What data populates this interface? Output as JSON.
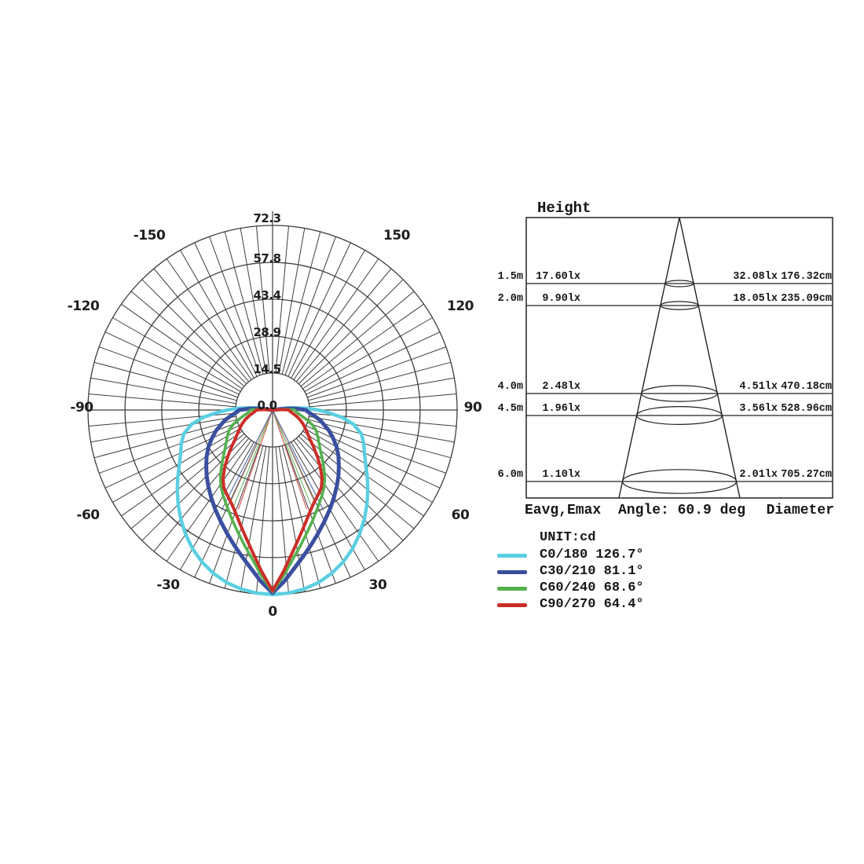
{
  "page": {
    "background": "#ffffff"
  },
  "chart_data": [
    {
      "type": "line",
      "subtype": "polar-candela-distribution",
      "title": "",
      "unit": "cd",
      "radial_axis": {
        "max": 72.3,
        "ticks": [
          0.0,
          14.5,
          28.9,
          43.4,
          57.8,
          72.3
        ],
        "tick_labels": [
          "0.0",
          "14.5",
          "28.9",
          "43.4",
          "57.8",
          "72.3"
        ]
      },
      "angle_ticks_deg": [
        -150,
        -120,
        -90,
        -60,
        -30,
        0,
        30,
        60,
        90,
        120,
        150
      ],
      "angle_tick_labels": [
        "-150",
        "-120",
        "-90",
        "-60",
        "-30",
        "0",
        "30",
        "60",
        "90",
        "120",
        "150"
      ],
      "grid": {
        "spoke_step_deg": 5,
        "inner_hole_value": 14.5,
        "color": "#3e3e3e"
      },
      "series": [
        {
          "name": "C0/180",
          "beam_angle": "126.7°",
          "color": "#5bcfe2",
          "width": 4.4,
          "points": [
            [
              0,
              72.3
            ],
            [
              5,
              72.0
            ],
            [
              10,
              71.2
            ],
            [
              15,
              69.9
            ],
            [
              20,
              68.0
            ],
            [
              25,
              65.6
            ],
            [
              30,
              62.7
            ],
            [
              35,
              59.4
            ],
            [
              40,
              55.9
            ],
            [
              45,
              52.3
            ],
            [
              50,
              48.7
            ],
            [
              55,
              45.3
            ],
            [
              60,
              42.1
            ],
            [
              65,
              39.7
            ],
            [
              70,
              38.0
            ],
            [
              75,
              36.0
            ],
            [
              80,
              32.2
            ],
            [
              84,
              27.3
            ],
            [
              87,
              22.3
            ],
            [
              90,
              17.8
            ],
            [
              93,
              13.3
            ],
            [
              97,
              7.3
            ],
            [
              100,
              3.2
            ],
            [
              103,
              0
            ]
          ]
        },
        {
          "name": "C30/210",
          "beam_angle": "81.1°",
          "color": "#3a4f9f",
          "width": 5,
          "points": [
            [
              0,
              71.7
            ],
            [
              4,
              67.2
            ],
            [
              8,
              62.4
            ],
            [
              12,
              58.4
            ],
            [
              16,
              54.9
            ],
            [
              20,
              51.7
            ],
            [
              25,
              48.1
            ],
            [
              30,
              44.9
            ],
            [
              35,
              41.9
            ],
            [
              40,
              39.1
            ],
            [
              45,
              36.5
            ],
            [
              50,
              33.9
            ],
            [
              55,
              31.5
            ],
            [
              60,
              29.0
            ],
            [
              65,
              26.2
            ],
            [
              70,
              23.5
            ],
            [
              74,
              21.0
            ],
            [
              78,
              19.0
            ],
            [
              82,
              16.5
            ],
            [
              85,
              14.8
            ],
            [
              88,
              13.5
            ],
            [
              90,
              13.1
            ],
            [
              93,
              9.3
            ],
            [
              96,
              5.2
            ],
            [
              100,
              0
            ]
          ]
        },
        {
          "name": "C60/240",
          "beam_angle": "68.6°",
          "color": "#55b14e",
          "width": 3.6,
          "points": [
            [
              0,
              71.2
            ],
            [
              4,
              64.8
            ],
            [
              8,
              58.6
            ],
            [
              12,
              53.8
            ],
            [
              16,
              49.6
            ],
            [
              20,
              46.0
            ],
            [
              25,
              42.0
            ],
            [
              30,
              38.7
            ],
            [
              34,
              36.2
            ],
            [
              38,
              33.2
            ],
            [
              42,
              30.0
            ],
            [
              46,
              27.0
            ],
            [
              50,
              24.4
            ],
            [
              55,
              22.2
            ],
            [
              60,
              20.4
            ],
            [
              65,
              18.8
            ],
            [
              70,
              16.4
            ],
            [
              75,
              13.4
            ],
            [
              80,
              11.0
            ],
            [
              85,
              9.4
            ],
            [
              88,
              8.9
            ],
            [
              90,
              8.7
            ],
            [
              93,
              5.3
            ],
            [
              97,
              0
            ]
          ]
        },
        {
          "name": "C90/270",
          "beam_angle": "64.4°",
          "color": "#cb2e28",
          "width": 4,
          "points": [
            [
              0,
              70.8
            ],
            [
              4,
              63.2
            ],
            [
              8,
              56.2
            ],
            [
              12,
              50.8
            ],
            [
              16,
              46.3
            ],
            [
              20,
              42.6
            ],
            [
              24,
              39.8
            ],
            [
              28,
              37.8
            ],
            [
              32,
              36.0
            ],
            [
              36,
              33.0
            ],
            [
              40,
              29.1
            ],
            [
              44,
              25.2
            ],
            [
              48,
              21.6
            ],
            [
              52,
              18.6
            ],
            [
              56,
              16.6
            ],
            [
              60,
              15.0
            ],
            [
              65,
              13.3
            ],
            [
              70,
              11.6
            ],
            [
              75,
              9.8
            ],
            [
              80,
              8.2
            ],
            [
              85,
              7.0
            ],
            [
              88,
              6.6
            ],
            [
              90,
              6.4
            ],
            [
              93,
              3.6
            ],
            [
              96,
              0
            ]
          ]
        }
      ],
      "center_rays": [
        {
          "color": "#cb2e28",
          "angle_deg": 19.0,
          "candela": 41
        },
        {
          "color": "#55b14e",
          "angle_deg": 22.0,
          "candela": 41
        },
        {
          "color": "#b98b66",
          "angle_deg": 24.5,
          "candela": 40
        },
        {
          "color": "#3a4f9f",
          "angle_deg": 27.0,
          "candela": 44
        }
      ]
    },
    {
      "type": "table",
      "subtype": "cone-illuminance-diagram",
      "title": "Height",
      "beam_angle_deg": 60.9,
      "columns": [
        "Height",
        "Eavg",
        "Emax",
        "Diameter"
      ],
      "rows": [
        {
          "height_m": 1.5,
          "height_label": "1.5m",
          "eavg": "17.60lx",
          "emax": "32.08lx",
          "diameter": "176.32cm"
        },
        {
          "height_m": 2.0,
          "height_label": "2.0m",
          "eavg": "9.90lx",
          "emax": "18.05lx",
          "diameter": "235.09cm"
        },
        {
          "height_m": 4.0,
          "height_label": "4.0m",
          "eavg": "2.48lx",
          "emax": "4.51lx",
          "diameter": "470.18cm"
        },
        {
          "height_m": 4.5,
          "height_label": "4.5m",
          "eavg": "1.96lx",
          "emax": "3.56lx",
          "diameter": "528.96cm"
        },
        {
          "height_m": 6.0,
          "height_label": "6.0m",
          "eavg": "1.10lx",
          "emax": "2.01lx",
          "diameter": "705.27cm"
        }
      ],
      "footer": {
        "left": "Eavg,Emax",
        "center": "Angle: 60.9 deg",
        "right": "Diameter"
      }
    }
  ],
  "legend": {
    "unit_label": "UNIT:cd",
    "entries": [
      {
        "label": "C0/180 126.7°",
        "color": "#5bcfe2"
      },
      {
        "label": "C30/210 81.1°",
        "color": "#3a4f9f"
      },
      {
        "label": "C60/240 68.6°",
        "color": "#55b14e"
      },
      {
        "label": "C90/270 64.4°",
        "color": "#cb2e28"
      }
    ]
  }
}
